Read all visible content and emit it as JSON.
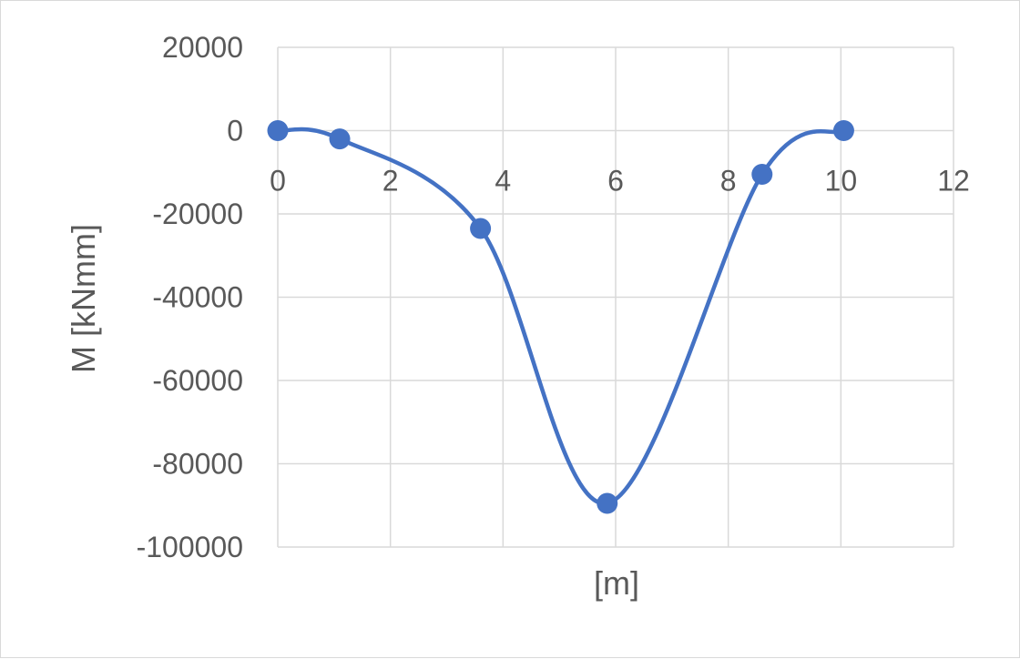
{
  "chart_data": {
    "type": "scatter",
    "title": "",
    "xlabel": "[m]",
    "ylabel": "M [kNmm]",
    "xlim": [
      0,
      12
    ],
    "ylim": [
      -100000,
      20000
    ],
    "x_ticks": [
      0,
      2,
      4,
      6,
      8,
      10,
      12
    ],
    "y_ticks": [
      20000,
      0,
      -20000,
      -40000,
      -60000,
      -80000,
      -100000
    ],
    "grid": true,
    "legend": "none",
    "smooth_line": true,
    "series": [
      {
        "color": "#4472c4",
        "marker": "circle",
        "points": [
          {
            "x": 0,
            "y": 0
          },
          {
            "x": 1.1,
            "y": -2000
          },
          {
            "x": 3.6,
            "y": -23500
          },
          {
            "x": 5.85,
            "y": -89500
          },
          {
            "x": 8.6,
            "y": -10500
          },
          {
            "x": 10.05,
            "y": 0
          }
        ]
      }
    ]
  }
}
